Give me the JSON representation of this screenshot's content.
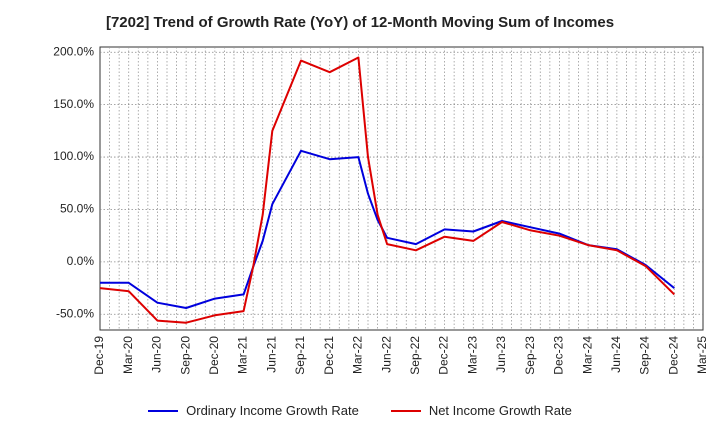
{
  "chart_data": {
    "type": "line",
    "title": "[7202]  Trend of Growth Rate (YoY) of 12-Month Moving Sum of Incomes",
    "ylim": [
      -65,
      205
    ],
    "y_ticks": [
      -50,
      0,
      50,
      100,
      150,
      200
    ],
    "y_tick_labels": [
      "-50.0%",
      "0.0%",
      "50.0%",
      "100.0%",
      "150.0%",
      "200.0%"
    ],
    "x_tick_labels": [
      "Dec-19",
      "Mar-20",
      "Jun-20",
      "Sep-20",
      "Dec-20",
      "Mar-21",
      "Jun-21",
      "Sep-21",
      "Dec-21",
      "Mar-22",
      "Jun-22",
      "Sep-22",
      "Dec-22",
      "Mar-23",
      "Jun-23",
      "Sep-23",
      "Dec-23",
      "Mar-24",
      "Jun-24",
      "Sep-24",
      "Dec-24",
      "Mar-25"
    ],
    "x_months": [
      "2019-12",
      "2020-01",
      "2020-02",
      "2020-03",
      "2020-04",
      "2020-05",
      "2020-06",
      "2020-07",
      "2020-08",
      "2020-09",
      "2020-10",
      "2020-11",
      "2020-12",
      "2021-01",
      "2021-02",
      "2021-03",
      "2021-04",
      "2021-05",
      "2021-06",
      "2021-07",
      "2021-08",
      "2021-09",
      "2021-10",
      "2021-11",
      "2021-12",
      "2022-01",
      "2022-02",
      "2022-03",
      "2022-04",
      "2022-05",
      "2022-06",
      "2022-07",
      "2022-08",
      "2022-09",
      "2022-10",
      "2022-11",
      "2022-12",
      "2023-01",
      "2023-02",
      "2023-03",
      "2023-04",
      "2023-05",
      "2023-06",
      "2023-07",
      "2023-08",
      "2023-09",
      "2023-10",
      "2023-11",
      "2023-12",
      "2024-01",
      "2024-02",
      "2024-03",
      "2024-04",
      "2024-05",
      "2024-06",
      "2024-07",
      "2024-08",
      "2024-09",
      "2024-10",
      "2024-11",
      "2024-12",
      "2025-01",
      "2025-02",
      "2025-03"
    ],
    "grid": true,
    "legend_position": "bottom",
    "series": [
      {
        "name": "Ordinary Income Growth Rate",
        "color": "#0000dd",
        "points": [
          [
            "2019-12",
            -20
          ],
          [
            "2020-03",
            -20
          ],
          [
            "2020-06",
            -39
          ],
          [
            "2020-09",
            -44
          ],
          [
            "2020-12",
            -35
          ],
          [
            "2021-03",
            -31
          ],
          [
            "2021-04",
            -5
          ],
          [
            "2021-05",
            20
          ],
          [
            "2021-06",
            55
          ],
          [
            "2021-09",
            106
          ],
          [
            "2021-12",
            98
          ],
          [
            "2022-03",
            100
          ],
          [
            "2022-04",
            65
          ],
          [
            "2022-05",
            40
          ],
          [
            "2022-06",
            23
          ],
          [
            "2022-09",
            17
          ],
          [
            "2022-12",
            31
          ],
          [
            "2023-03",
            29
          ],
          [
            "2023-06",
            39
          ],
          [
            "2023-09",
            33
          ],
          [
            "2023-12",
            27
          ],
          [
            "2024-03",
            16
          ],
          [
            "2024-06",
            12
          ],
          [
            "2024-09",
            -3
          ],
          [
            "2024-12",
            -25
          ]
        ]
      },
      {
        "name": "Net Income Growth Rate",
        "color": "#dd0000",
        "points": [
          [
            "2019-12",
            -25
          ],
          [
            "2020-03",
            -28
          ],
          [
            "2020-06",
            -56
          ],
          [
            "2020-09",
            -58
          ],
          [
            "2020-12",
            -51
          ],
          [
            "2021-03",
            -47
          ],
          [
            "2021-04",
            -5
          ],
          [
            "2021-05",
            45
          ],
          [
            "2021-06",
            125
          ],
          [
            "2021-09",
            192
          ],
          [
            "2021-12",
            181
          ],
          [
            "2022-03",
            195
          ],
          [
            "2022-04",
            100
          ],
          [
            "2022-05",
            45
          ],
          [
            "2022-06",
            17
          ],
          [
            "2022-09",
            11
          ],
          [
            "2022-12",
            24
          ],
          [
            "2023-03",
            20
          ],
          [
            "2023-06",
            38
          ],
          [
            "2023-09",
            30
          ],
          [
            "2023-12",
            25
          ],
          [
            "2024-03",
            16
          ],
          [
            "2024-06",
            11
          ],
          [
            "2024-09",
            -4
          ],
          [
            "2024-12",
            -31
          ]
        ]
      }
    ]
  }
}
